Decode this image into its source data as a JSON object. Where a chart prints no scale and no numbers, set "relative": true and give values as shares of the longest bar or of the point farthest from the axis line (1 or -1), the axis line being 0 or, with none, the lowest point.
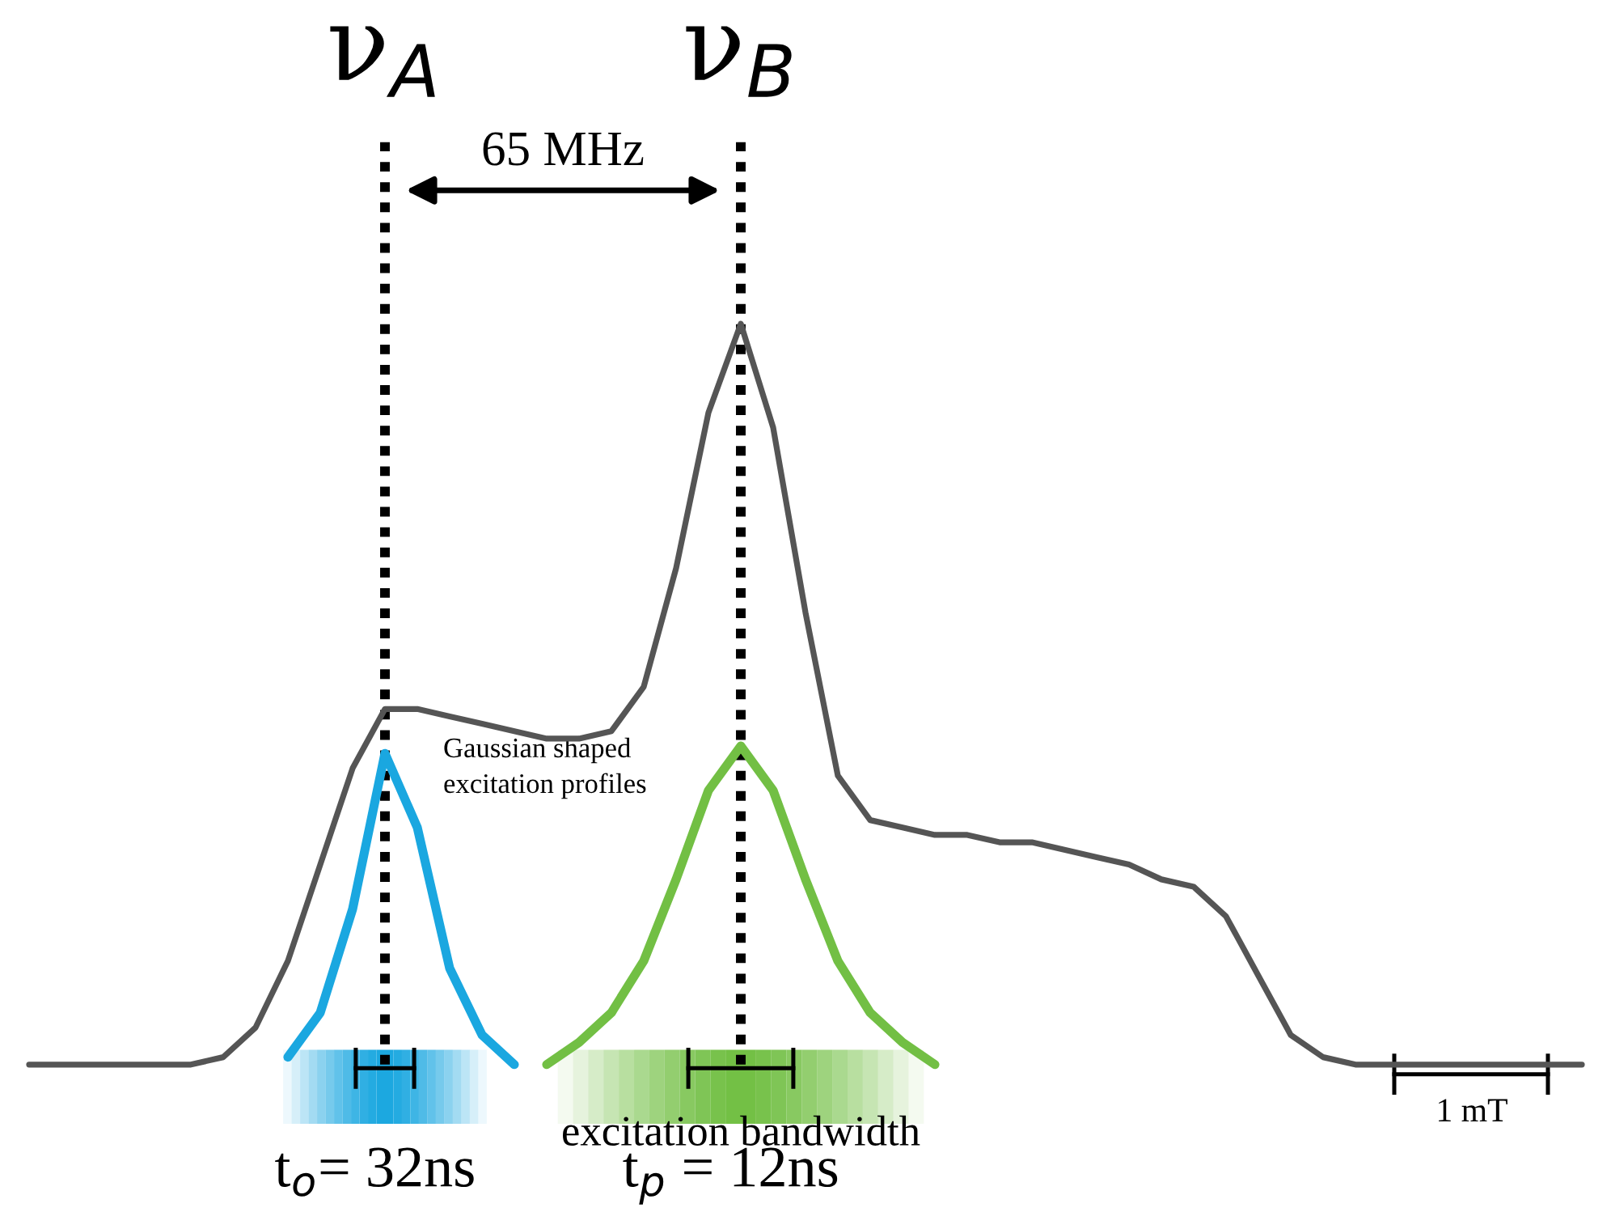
{
  "chart_data": {
    "type": "line",
    "relative": true,
    "categories": [
      null,
      null,
      null,
      null,
      null,
      null,
      null,
      null,
      null,
      null,
      null,
      null,
      null,
      null,
      null,
      null,
      null,
      null,
      null,
      null,
      null,
      null,
      null,
      null,
      null,
      null,
      null,
      null,
      null,
      null,
      null,
      null,
      null,
      null,
      null,
      null,
      null,
      null,
      null,
      null,
      null,
      null,
      null,
      null,
      null,
      null,
      null,
      null,
      null
    ],
    "series": [
      {
        "color": "#555555",
        "values": [
          0,
          0,
          0,
          0,
          0,
          0,
          0.01,
          0.05,
          0.14,
          0.27,
          0.4,
          0.48,
          0.48,
          0.47,
          0.46,
          0.45,
          0.44,
          0.44,
          0.45,
          0.51,
          0.67,
          0.88,
          1,
          0.86,
          0.61,
          0.39,
          0.33,
          0.32,
          0.31,
          0.31,
          0.3,
          0.3,
          0.29,
          0.28,
          0.27,
          0.25,
          0.24,
          0.2,
          0.12,
          0.04,
          0.01,
          0,
          0,
          0,
          0,
          0,
          0,
          0,
          0
        ]
      },
      {
        "color": "#1aa7e0",
        "values": [
          null,
          null,
          null,
          null,
          null,
          null,
          null,
          null,
          0.01,
          0.07,
          0.21,
          0.42,
          0.32,
          0.13,
          0.04,
          0,
          null,
          null,
          null,
          null,
          null,
          null,
          null,
          null,
          null,
          null,
          null,
          null,
          null,
          null,
          null,
          null,
          null,
          null,
          null,
          null,
          null,
          null,
          null,
          null,
          null,
          null,
          null,
          null,
          null,
          null,
          null,
          null,
          null
        ]
      },
      {
        "color": "#72bf44",
        "values": [
          null,
          null,
          null,
          null,
          null,
          null,
          null,
          null,
          null,
          null,
          null,
          null,
          null,
          null,
          null,
          null,
          0,
          0.03,
          0.07,
          0.14,
          0.25,
          0.37,
          0.43,
          0.37,
          0.25,
          0.14,
          0.07,
          0.03,
          0,
          null,
          null,
          null,
          null,
          null,
          null,
          null,
          null,
          null,
          null,
          null,
          null,
          null,
          null,
          null,
          null,
          null,
          null,
          null,
          null
        ]
      }
    ],
    "annotations": [
      "ν$_{A}$",
      "ν$_{B}$",
      "65 MHz",
      "Gaussian shaped\nexcitation profiles",
      "excitation bandwidth",
      "t$_{o}$= 32ns",
      "t$_{p}$ = 12ns",
      "1 mT"
    ]
  }
}
